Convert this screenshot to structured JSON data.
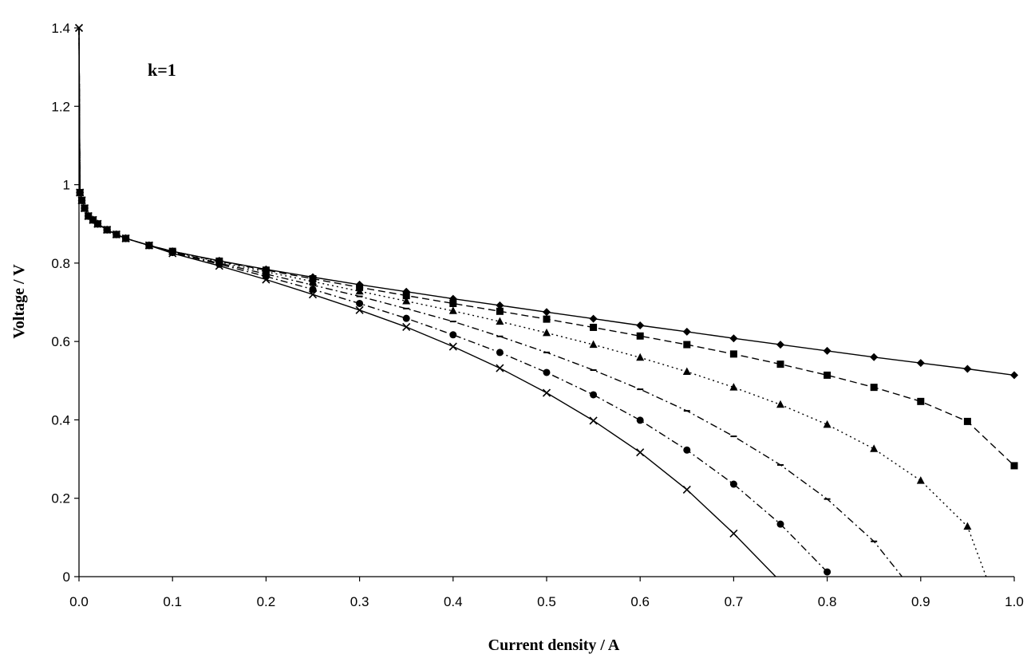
{
  "chart_data": {
    "type": "line",
    "title": "",
    "xlabel": "Current density / A",
    "ylabel": "Voltage / V",
    "annotation": "k=1",
    "xlim": [
      0,
      1.0
    ],
    "ylim": [
      0,
      1.4
    ],
    "x_ticks": [
      "0.0",
      "0.1",
      "0.2",
      "0.3",
      "0.4",
      "0.5",
      "0.6",
      "0.7",
      "0.8",
      "0.9",
      "1.0"
    ],
    "y_ticks": [
      "0",
      "0.2",
      "0.4",
      "0.6",
      "0.8",
      "1",
      "1.2",
      "1.4"
    ],
    "grid": false,
    "legend": "none",
    "series": [
      {
        "marker": "diamond",
        "dash": "solid",
        "points": [
          [
            0,
            1.4
          ],
          [
            0.001,
            0.98
          ],
          [
            0.003,
            0.96
          ],
          [
            0.006,
            0.94
          ],
          [
            0.01,
            0.92
          ],
          [
            0.015,
            0.91
          ],
          [
            0.02,
            0.9
          ],
          [
            0.03,
            0.885
          ],
          [
            0.04,
            0.873
          ],
          [
            0.05,
            0.863
          ],
          [
            0.075,
            0.845
          ],
          [
            0.1,
            0.83
          ],
          [
            0.15,
            0.806
          ],
          [
            0.2,
            0.784
          ],
          [
            0.25,
            0.764
          ],
          [
            0.3,
            0.745
          ],
          [
            0.35,
            0.727
          ],
          [
            0.4,
            0.709
          ],
          [
            0.45,
            0.692
          ],
          [
            0.5,
            0.675
          ],
          [
            0.55,
            0.658
          ],
          [
            0.6,
            0.641
          ],
          [
            0.65,
            0.625
          ],
          [
            0.7,
            0.608
          ],
          [
            0.75,
            0.592
          ],
          [
            0.8,
            0.576
          ],
          [
            0.85,
            0.56
          ],
          [
            0.9,
            0.545
          ],
          [
            0.95,
            0.53
          ],
          [
            1.0,
            0.514
          ]
        ]
      },
      {
        "marker": "square",
        "dash": "dash",
        "points": [
          [
            0,
            1.4
          ],
          [
            0.001,
            0.98
          ],
          [
            0.003,
            0.96
          ],
          [
            0.006,
            0.94
          ],
          [
            0.01,
            0.92
          ],
          [
            0.015,
            0.91
          ],
          [
            0.02,
            0.9
          ],
          [
            0.03,
            0.885
          ],
          [
            0.04,
            0.873
          ],
          [
            0.05,
            0.863
          ],
          [
            0.075,
            0.845
          ],
          [
            0.1,
            0.83
          ],
          [
            0.15,
            0.805
          ],
          [
            0.2,
            0.782
          ],
          [
            0.25,
            0.76
          ],
          [
            0.3,
            0.738
          ],
          [
            0.35,
            0.717
          ],
          [
            0.4,
            0.697
          ],
          [
            0.45,
            0.677
          ],
          [
            0.5,
            0.657
          ],
          [
            0.55,
            0.636
          ],
          [
            0.6,
            0.614
          ],
          [
            0.65,
            0.592
          ],
          [
            0.7,
            0.568
          ],
          [
            0.75,
            0.542
          ],
          [
            0.8,
            0.514
          ],
          [
            0.85,
            0.483
          ],
          [
            0.9,
            0.447
          ],
          [
            0.95,
            0.396
          ],
          [
            1.0,
            0.283
          ]
        ]
      },
      {
        "marker": "triangle",
        "dash": "dot",
        "points": [
          [
            0,
            1.4
          ],
          [
            0.001,
            0.98
          ],
          [
            0.003,
            0.96
          ],
          [
            0.006,
            0.94
          ],
          [
            0.01,
            0.92
          ],
          [
            0.015,
            0.91
          ],
          [
            0.02,
            0.9
          ],
          [
            0.03,
            0.885
          ],
          [
            0.04,
            0.873
          ],
          [
            0.05,
            0.863
          ],
          [
            0.075,
            0.845
          ],
          [
            0.1,
            0.829
          ],
          [
            0.15,
            0.803
          ],
          [
            0.2,
            0.778
          ],
          [
            0.25,
            0.753
          ],
          [
            0.3,
            0.728
          ],
          [
            0.35,
            0.703
          ],
          [
            0.4,
            0.678
          ],
          [
            0.45,
            0.651
          ],
          [
            0.5,
            0.622
          ],
          [
            0.55,
            0.592
          ],
          [
            0.6,
            0.559
          ],
          [
            0.65,
            0.523
          ],
          [
            0.7,
            0.483
          ],
          [
            0.75,
            0.439
          ],
          [
            0.8,
            0.388
          ],
          [
            0.85,
            0.326
          ],
          [
            0.9,
            0.245
          ],
          [
            0.95,
            0.128
          ],
          [
            0.97,
            0.0
          ]
        ]
      },
      {
        "marker": "dash",
        "dash": "dashdot",
        "points": [
          [
            0,
            1.4
          ],
          [
            0.001,
            0.98
          ],
          [
            0.003,
            0.96
          ],
          [
            0.006,
            0.94
          ],
          [
            0.01,
            0.92
          ],
          [
            0.015,
            0.91
          ],
          [
            0.02,
            0.9
          ],
          [
            0.03,
            0.885
          ],
          [
            0.04,
            0.873
          ],
          [
            0.05,
            0.863
          ],
          [
            0.075,
            0.845
          ],
          [
            0.1,
            0.828
          ],
          [
            0.15,
            0.8
          ],
          [
            0.2,
            0.772
          ],
          [
            0.25,
            0.744
          ],
          [
            0.3,
            0.715
          ],
          [
            0.35,
            0.684
          ],
          [
            0.4,
            0.651
          ],
          [
            0.45,
            0.613
          ],
          [
            0.5,
            0.572
          ],
          [
            0.55,
            0.527
          ],
          [
            0.6,
            0.478
          ],
          [
            0.65,
            0.423
          ],
          [
            0.7,
            0.358
          ],
          [
            0.75,
            0.285
          ],
          [
            0.8,
            0.198
          ],
          [
            0.85,
            0.09
          ],
          [
            0.88,
            0.0
          ]
        ]
      },
      {
        "marker": "circle",
        "dash": "dashdot",
        "points": [
          [
            0,
            1.4
          ],
          [
            0.001,
            0.98
          ],
          [
            0.003,
            0.96
          ],
          [
            0.006,
            0.94
          ],
          [
            0.01,
            0.92
          ],
          [
            0.015,
            0.91
          ],
          [
            0.02,
            0.9
          ],
          [
            0.03,
            0.885
          ],
          [
            0.04,
            0.873
          ],
          [
            0.05,
            0.863
          ],
          [
            0.075,
            0.845
          ],
          [
            0.1,
            0.827
          ],
          [
            0.15,
            0.797
          ],
          [
            0.2,
            0.766
          ],
          [
            0.25,
            0.733
          ],
          [
            0.3,
            0.697
          ],
          [
            0.35,
            0.659
          ],
          [
            0.4,
            0.617
          ],
          [
            0.45,
            0.572
          ],
          [
            0.5,
            0.521
          ],
          [
            0.55,
            0.464
          ],
          [
            0.6,
            0.399
          ],
          [
            0.65,
            0.323
          ],
          [
            0.7,
            0.236
          ],
          [
            0.75,
            0.134
          ],
          [
            0.8,
            0.012
          ]
        ]
      },
      {
        "marker": "x",
        "dash": "solid",
        "points": [
          [
            0,
            1.4
          ],
          [
            0.001,
            0.98
          ],
          [
            0.003,
            0.96
          ],
          [
            0.006,
            0.94
          ],
          [
            0.01,
            0.92
          ],
          [
            0.015,
            0.91
          ],
          [
            0.02,
            0.9
          ],
          [
            0.03,
            0.885
          ],
          [
            0.04,
            0.873
          ],
          [
            0.05,
            0.863
          ],
          [
            0.075,
            0.845
          ],
          [
            0.1,
            0.825
          ],
          [
            0.15,
            0.793
          ],
          [
            0.2,
            0.758
          ],
          [
            0.25,
            0.72
          ],
          [
            0.3,
            0.68
          ],
          [
            0.35,
            0.637
          ],
          [
            0.4,
            0.587
          ],
          [
            0.45,
            0.532
          ],
          [
            0.5,
            0.469
          ],
          [
            0.55,
            0.398
          ],
          [
            0.6,
            0.317
          ],
          [
            0.65,
            0.222
          ],
          [
            0.7,
            0.11
          ],
          [
            0.745,
            0.0
          ]
        ]
      }
    ]
  }
}
